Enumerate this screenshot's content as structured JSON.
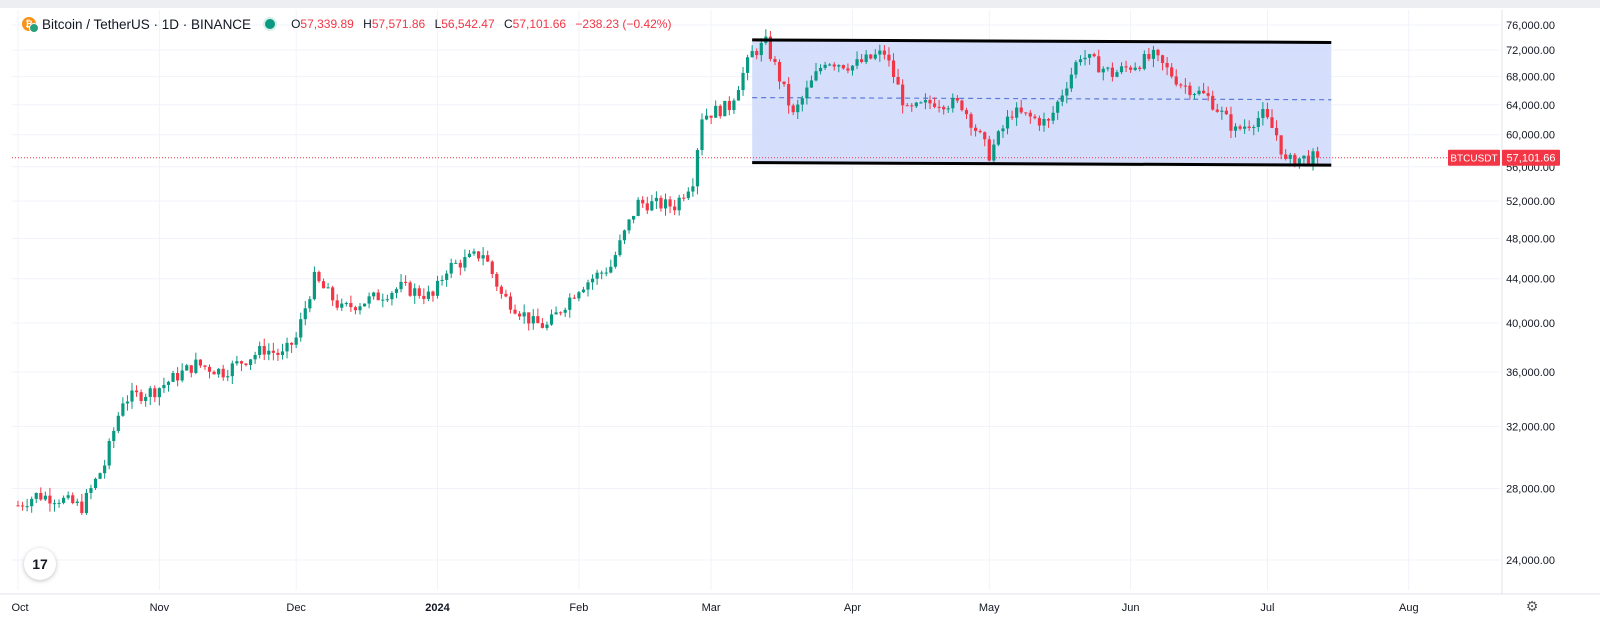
{
  "header": {
    "symbol_title": "Bitcoin / TetherUS · 1D · BINANCE",
    "open": "57,339.89",
    "high": "57,571.86",
    "low": "56,542.47",
    "close": "57,101.66",
    "change": "−238.23 (−0.42%)",
    "open_label": "O",
    "high_label": "H",
    "low_label": "L",
    "close_label": "C",
    "coin_icon": "bitcoin-icon",
    "status_icon": "market-open-dot-icon"
  },
  "price_tag": {
    "symbol": "BTCUSDT",
    "price": "57,101.66",
    "value": 57101.66
  },
  "logo": {
    "text": "17",
    "icon": "tradingview-logo-icon"
  },
  "colors": {
    "up": "#089981",
    "down": "#f23645",
    "range_fill": "#d0dcfc",
    "midline": "#5b7bd6",
    "channel": "#000000"
  },
  "chart_data": {
    "type": "candlestick",
    "title": "",
    "xlabel": "",
    "ylabel": "",
    "y_scale": "log",
    "ylim": [
      22500,
      78500
    ],
    "y_ticks": [
      "76,000.00",
      "72,000.00",
      "68,000.00",
      "64,000.00",
      "60,000.00",
      "56,000.00",
      "52,000.00",
      "48,000.00",
      "44,000.00",
      "40,000.00",
      "36,000.00",
      "32,000.00",
      "28,000.00",
      "24,000.00"
    ],
    "y_tick_values": [
      76000,
      72000,
      68000,
      64000,
      60000,
      56000,
      52000,
      48000,
      44000,
      40000,
      36000,
      32000,
      28000,
      24000
    ],
    "x_range": [
      "2023-10-01",
      "2024-08-21"
    ],
    "x_ticks": [
      {
        "label": "Oct",
        "date": "2023-10-01"
      },
      {
        "label": "Nov",
        "date": "2023-11-01"
      },
      {
        "label": "Dec",
        "date": "2023-12-01"
      },
      {
        "label": "2024",
        "date": "2024-01-01"
      },
      {
        "label": "Feb",
        "date": "2024-02-01"
      },
      {
        "label": "Mar",
        "date": "2024-03-01"
      },
      {
        "label": "Apr",
        "date": "2024-04-01"
      },
      {
        "label": "May",
        "date": "2024-05-01"
      },
      {
        "label": "Jun",
        "date": "2024-06-01"
      },
      {
        "label": "Jul",
        "date": "2024-07-01"
      },
      {
        "label": "Aug",
        "date": "2024-08-01"
      }
    ],
    "grid": true,
    "last_price": 57101.66,
    "range_box": {
      "start": "2024-03-10",
      "end": "2024-07-15",
      "top_start": 73600,
      "top_end": 73200,
      "bottom_start": 56500,
      "bottom_end": 56200,
      "mid_start": 65000,
      "mid_end": 64700
    },
    "close_path": [
      [
        "2023-10-01",
        27000
      ],
      [
        "2023-10-05",
        27600
      ],
      [
        "2023-10-10",
        27400
      ],
      [
        "2023-10-15",
        26900
      ],
      [
        "2023-10-20",
        29500
      ],
      [
        "2023-10-24",
        33900
      ],
      [
        "2023-10-31",
        34600
      ],
      [
        "2023-11-09",
        36600
      ],
      [
        "2023-11-15",
        36000
      ],
      [
        "2023-11-24",
        37800
      ],
      [
        "2023-11-28",
        37300
      ],
      [
        "2023-12-01",
        38700
      ],
      [
        "2023-12-05",
        44000
      ],
      [
        "2023-12-11",
        41200
      ],
      [
        "2023-12-18",
        42200
      ],
      [
        "2023-12-24",
        43200
      ],
      [
        "2023-12-31",
        42300
      ],
      [
        "2024-01-03",
        45000
      ],
      [
        "2024-01-11",
        46500
      ],
      [
        "2024-01-15",
        42500
      ],
      [
        "2024-01-22",
        40000
      ],
      [
        "2024-01-25",
        39700
      ],
      [
        "2024-02-01",
        43200
      ],
      [
        "2024-02-08",
        45200
      ],
      [
        "2024-02-14",
        51800
      ],
      [
        "2024-02-22",
        51500
      ],
      [
        "2024-02-26",
        54500
      ],
      [
        "2024-02-28",
        62500
      ],
      [
        "2024-03-05",
        63800
      ],
      [
        "2024-03-10",
        71500
      ],
      [
        "2024-03-13",
        73100
      ],
      [
        "2024-03-19",
        62500
      ],
      [
        "2024-03-26",
        70500
      ],
      [
        "2024-04-01",
        69600
      ],
      [
        "2024-04-08",
        71600
      ],
      [
        "2024-04-13",
        63000
      ],
      [
        "2024-04-19",
        64500
      ],
      [
        "2024-04-25",
        64000
      ],
      [
        "2024-05-01",
        57500
      ],
      [
        "2024-05-06",
        63000
      ],
      [
        "2024-05-14",
        61500
      ],
      [
        "2024-05-21",
        71300
      ],
      [
        "2024-05-28",
        68400
      ],
      [
        "2024-06-06",
        71000
      ],
      [
        "2024-06-12",
        67000
      ],
      [
        "2024-06-18",
        65000
      ],
      [
        "2024-06-24",
        60500
      ],
      [
        "2024-06-30",
        62600
      ],
      [
        "2024-07-03",
        60000
      ],
      [
        "2024-07-05",
        56500
      ],
      [
        "2024-07-08",
        57000
      ],
      [
        "2024-07-12",
        57101.66
      ]
    ]
  }
}
